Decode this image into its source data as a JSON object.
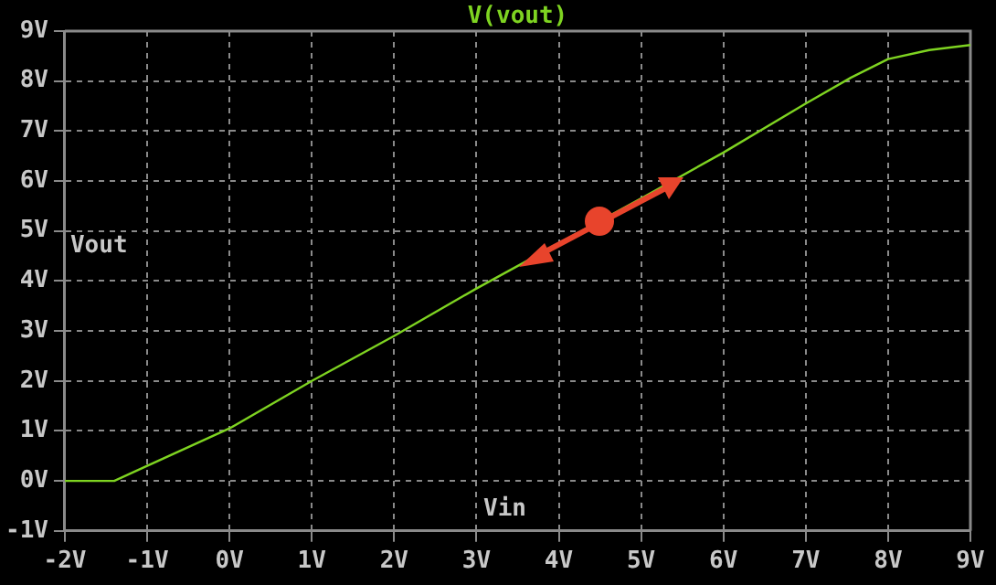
{
  "chart_data": {
    "type": "line",
    "title": "V(vout)",
    "xlabel": "Vin",
    "ylabel": "Vout",
    "x": [
      -2,
      -1.4,
      -1.2,
      -1,
      0,
      1,
      2,
      3,
      4,
      5,
      6,
      7,
      7.55,
      8,
      8.5,
      9
    ],
    "series": [
      {
        "color": "#7ed321",
        "values": [
          0,
          0,
          0.15,
          0.3,
          1.05,
          2.0,
          2.9,
          3.85,
          4.75,
          5.65,
          6.57,
          7.55,
          8.07,
          8.44,
          8.62,
          8.72
        ]
      }
    ],
    "xlim": [
      -2,
      9
    ],
    "xticks": [
      {
        "value": -2,
        "label": "-2V"
      },
      {
        "value": -1,
        "label": "-1V"
      },
      {
        "value": 0,
        "label": "0V"
      },
      {
        "value": 1,
        "label": "1V"
      },
      {
        "value": 2,
        "label": "2V"
      },
      {
        "value": 3,
        "label": "3V"
      },
      {
        "value": 4,
        "label": "4V"
      },
      {
        "value": 5,
        "label": "5V"
      },
      {
        "value": 6,
        "label": "6V"
      },
      {
        "value": 7,
        "label": "7V"
      },
      {
        "value": 8,
        "label": "8V"
      },
      {
        "value": 9,
        "label": "9V"
      }
    ],
    "ylim": [
      -1,
      9
    ],
    "yticks": [
      {
        "value": -1,
        "label": "-1V"
      },
      {
        "value": 0,
        "label": "0V"
      },
      {
        "value": 1,
        "label": "1V"
      },
      {
        "value": 2,
        "label": "2V"
      },
      {
        "value": 3,
        "label": "3V"
      },
      {
        "value": 4,
        "label": "4V"
      },
      {
        "value": 5,
        "label": "5V"
      },
      {
        "value": 6,
        "label": "6V"
      },
      {
        "value": 7,
        "label": "7V"
      },
      {
        "value": 8,
        "label": "8V"
      },
      {
        "value": 9,
        "label": "9V"
      }
    ],
    "grid": true,
    "legend": false,
    "marker": "none",
    "line_style": "solid"
  }
}
